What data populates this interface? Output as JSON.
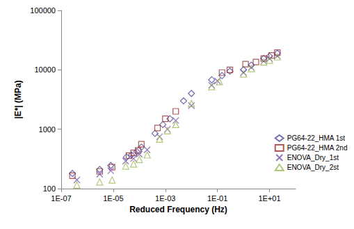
{
  "chart_data": {
    "type": "scatter",
    "x_label": "Reduced Frequency (Hz)",
    "y_label": "|E*| (MPa)",
    "log": true,
    "grid": false,
    "legend": "lower right",
    "xlim": [
      1e-07,
      100
    ],
    "xticks": [
      {
        "value": 1e-07,
        "label": "1E-07"
      },
      {
        "value": 1e-05,
        "label": "1E-05"
      },
      {
        "value": 0.001,
        "label": "1E-03"
      },
      {
        "value": 0.1,
        "label": "1E-01"
      },
      {
        "value": 10,
        "label": "1E+01"
      }
    ],
    "ylim": [
      100,
      100000
    ],
    "yticks": [
      100,
      1000,
      10000,
      100000
    ],
    "series": [
      {
        "name": "PG64-22_HMA 1st",
        "color": "#4b4b9b",
        "marker": "diamond",
        "x": [
          2.7e-07,
          3e-06,
          8e-06,
          3.2e-05,
          5e-05,
          8e-05,
          0.00012,
          0.0004,
          0.0008,
          0.0015,
          0.005,
          0.01,
          0.06,
          0.15,
          0.3,
          1,
          2,
          6,
          10,
          20
        ],
        "values": [
          180,
          210,
          245,
          340,
          370,
          420,
          500,
          850,
          1200,
          1500,
          3000,
          4000,
          6800,
          8000,
          9500,
          10000,
          12000,
          15500,
          17000,
          19000
        ]
      },
      {
        "name": "PG64-22_HMA 2nd",
        "color": "#993333",
        "marker": "square",
        "x": [
          2.7e-07,
          3e-06,
          9e-06,
          4e-05,
          6e-05,
          9e-05,
          0.00012,
          0.0005,
          0.001,
          0.0025,
          0.15,
          0.3,
          1.2,
          3,
          6,
          12,
          20
        ],
        "values": [
          165,
          195,
          230,
          360,
          400,
          440,
          560,
          1050,
          1500,
          2000,
          9000,
          10000,
          12500,
          13500,
          15500,
          17500,
          19500
        ]
      },
      {
        "name": "ENOVA_Dry_1st",
        "color": "#7b52ab",
        "marker": "x",
        "x": [
          4e-07,
          3e-06,
          8e-06,
          3e-05,
          6e-05,
          0.0001,
          0.0002,
          0.0006,
          0.0012,
          0.0025,
          0.01,
          0.06,
          0.1,
          1,
          2,
          6,
          10,
          20
        ],
        "values": [
          140,
          175,
          200,
          290,
          320,
          380,
          450,
          750,
          1000,
          1400,
          2500,
          5500,
          6500,
          9000,
          11000,
          14000,
          15500,
          17000
        ]
      },
      {
        "name": "ENOVA_Dry_2st",
        "color": "#9bbb59",
        "marker": "triangle",
        "x": [
          4e-07,
          3e-06,
          9e-06,
          3e-05,
          6e-05,
          0.0001,
          0.0002,
          0.0006,
          0.0012,
          0.0025,
          0.01,
          0.06,
          0.12,
          1,
          2,
          6,
          10,
          20
        ],
        "values": [
          115,
          130,
          140,
          240,
          260,
          310,
          370,
          680,
          940,
          1200,
          2700,
          5200,
          6300,
          8500,
          10500,
          13500,
          14500,
          16500
        ]
      }
    ]
  }
}
